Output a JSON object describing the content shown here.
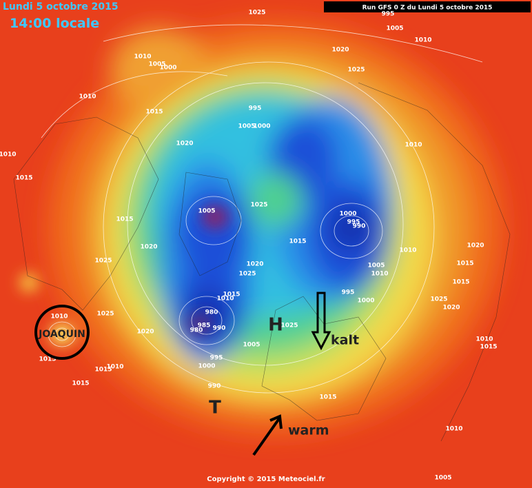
{
  "header": {
    "date": "Lundi 5 octobre 2015",
    "time": "14:00 locale",
    "run": "Run GFS 0 Z du Lundi 5 octobre 2015"
  },
  "footer": {
    "copyright": "Copyright © 2015 Meteociel.fr"
  },
  "annotations": {
    "storm": "JOAQUIN",
    "high": "H",
    "cold": "kalt",
    "low": "T",
    "warm": "warm"
  },
  "pressure_labels": [
    1025,
    995,
    1005,
    1010,
    1020,
    1025,
    1010,
    1005,
    1000,
    1010,
    1015,
    995,
    1005,
    1000,
    1020,
    1010,
    1010,
    1015,
    1025,
    1005,
    1000,
    995,
    990,
    1015,
    1015,
    1010,
    1020,
    1020,
    1025,
    1020,
    1005,
    1015,
    1025,
    1010,
    1015,
    995,
    1000,
    1025,
    1020,
    1015,
    1010,
    980,
    985,
    990,
    980,
    1025,
    1020,
    1025,
    1010,
    1005,
    1010,
    1015,
    995,
    1000,
    1015,
    1015,
    1010,
    1015,
    990,
    1015,
    1010,
    1005
  ]
}
